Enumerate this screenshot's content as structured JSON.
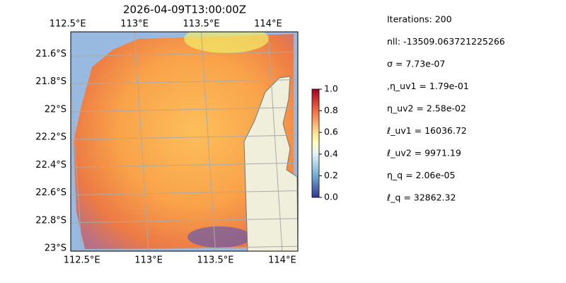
{
  "map": {
    "title": "2026-04-09T13:00:00Z",
    "lonlim": [
      112.47,
      114.17
    ],
    "latlim": [
      21.44,
      23.02
    ],
    "lon_ticks": [
      {
        "value": 112.5,
        "label": "112.5°E"
      },
      {
        "value": 113,
        "label": "113°E"
      },
      {
        "value": 113.5,
        "label": "113.5°E"
      },
      {
        "value": 114,
        "label": "114°E"
      }
    ],
    "lat_ticks": [
      {
        "value": 21.6,
        "label": "21.6°S"
      },
      {
        "value": 21.8,
        "label": "21.8°S"
      },
      {
        "value": 22,
        "label": "22°S"
      },
      {
        "value": 22.2,
        "label": "22.2°S"
      },
      {
        "value": 22.4,
        "label": "22.4°S"
      },
      {
        "value": 22.6,
        "label": "22.6°S"
      },
      {
        "value": 22.8,
        "label": "22.8°S"
      },
      {
        "value": 23,
        "label": "23°S"
      }
    ],
    "grid": true,
    "colorbar": {
      "lim": [
        0,
        1
      ],
      "ticks": [
        {
          "value": 0,
          "label": "0.0"
        },
        {
          "value": 0.2,
          "label": "0.2"
        },
        {
          "value": 0.4,
          "label": "0.4"
        },
        {
          "value": 0.6,
          "label": "0.6"
        },
        {
          "value": 0.8,
          "label": "0.8"
        },
        {
          "value": 1,
          "label": "1.0"
        }
      ]
    },
    "info": [
      "Iterations: 200",
      "nll: -13509.063721225266",
      "σ = 7.73e-07",
      ",η_uv1 = 1.79e-01",
      "η_uv2 = 2.58e-02",
      "ℓ_uv1 = 16036.72",
      "ℓ_uv2 = 9971.19",
      "η_q = 2.06e-05",
      "ℓ_q = 32862.32"
    ]
  }
}
